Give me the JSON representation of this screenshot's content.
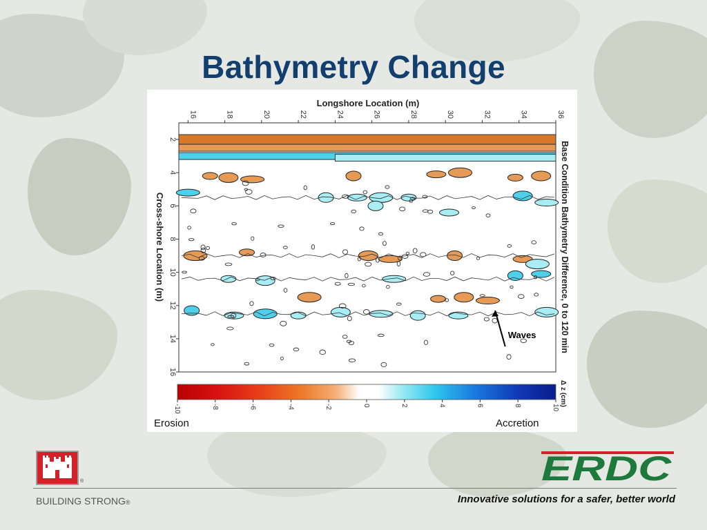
{
  "slide": {
    "title": "Bathymetry Change",
    "footer_left": "BUILDING STRONG",
    "footer_reg": "®",
    "tagline": "Innovative solutions for a safer, better world",
    "erdc_logo_text": "ERDC",
    "colors": {
      "title": "#123f6e",
      "erdc_green": "#1e7a3c",
      "logo_red": "#d62027"
    }
  },
  "chart_data": {
    "type": "heatmap",
    "title": "Longshore Location (m)",
    "xlabel": "Longshore Location (m)",
    "ylabel": "Cross-shore Location (m)",
    "right_label": "Base Condition Bathymetry Difference, 0 to 120 min",
    "x_ticks": [
      "16",
      "18",
      "20",
      "22",
      "24",
      "26",
      "28",
      "30",
      "32",
      "34",
      "36"
    ],
    "y_ticks": [
      "2",
      "4",
      "6",
      "8",
      "10",
      "12",
      "14",
      "16"
    ],
    "xlim": [
      15.5,
      36
    ],
    "ylim": [
      1,
      16
    ],
    "colorbar": {
      "label": "Δ z (cm)",
      "ticks": [
        "-10",
        "-8",
        "-6",
        "-4",
        "-2",
        "0",
        "2",
        "4",
        "6",
        "8",
        "10"
      ],
      "range": [
        -10,
        10
      ]
    },
    "bands": [
      {
        "y": 2.0,
        "dz": -5,
        "x": [
          15.5,
          36
        ]
      },
      {
        "y": 2.5,
        "dz": -3,
        "x": [
          15.5,
          36
        ]
      },
      {
        "y": 3.0,
        "dz": 3,
        "x": [
          15.5,
          36
        ]
      },
      {
        "y": 3.1,
        "dz": 1,
        "x": [
          24,
          36
        ]
      }
    ],
    "patches": [
      {
        "x": 17.2,
        "y": 4.2,
        "dz": -3
      },
      {
        "x": 18.2,
        "y": 4.3,
        "dz": -3
      },
      {
        "x": 19.5,
        "y": 4.4,
        "dz": -3
      },
      {
        "x": 25.0,
        "y": 4.2,
        "dz": -3
      },
      {
        "x": 29.5,
        "y": 4.1,
        "dz": -3
      },
      {
        "x": 30.8,
        "y": 4.0,
        "dz": -3
      },
      {
        "x": 33.8,
        "y": 4.3,
        "dz": -3
      },
      {
        "x": 35.2,
        "y": 4.2,
        "dz": -3
      },
      {
        "x": 16.0,
        "y": 5.2,
        "dz": 3
      },
      {
        "x": 23.5,
        "y": 5.5,
        "dz": 2
      },
      {
        "x": 25.2,
        "y": 5.5,
        "dz": 2
      },
      {
        "x": 26.5,
        "y": 5.5,
        "dz": 2
      },
      {
        "x": 28.0,
        "y": 5.5,
        "dz": 2
      },
      {
        "x": 34.2,
        "y": 5.4,
        "dz": 3
      },
      {
        "x": 35.5,
        "y": 5.8,
        "dz": 2
      },
      {
        "x": 26.2,
        "y": 6.0,
        "dz": 2
      },
      {
        "x": 30.2,
        "y": 6.4,
        "dz": 2
      },
      {
        "x": 16.4,
        "y": 9.0,
        "dz": -3
      },
      {
        "x": 19.2,
        "y": 8.8,
        "dz": -3
      },
      {
        "x": 25.8,
        "y": 9.0,
        "dz": -3
      },
      {
        "x": 27.0,
        "y": 9.2,
        "dz": -3
      },
      {
        "x": 30.5,
        "y": 9.0,
        "dz": -3
      },
      {
        "x": 34.2,
        "y": 9.2,
        "dz": -3
      },
      {
        "x": 35.0,
        "y": 9.5,
        "dz": 2
      },
      {
        "x": 18.2,
        "y": 10.4,
        "dz": 2
      },
      {
        "x": 20.2,
        "y": 10.5,
        "dz": 2
      },
      {
        "x": 27.2,
        "y": 10.4,
        "dz": 2
      },
      {
        "x": 33.8,
        "y": 10.2,
        "dz": 3
      },
      {
        "x": 35.2,
        "y": 10.1,
        "dz": 3
      },
      {
        "x": 22.6,
        "y": 11.5,
        "dz": -3
      },
      {
        "x": 29.6,
        "y": 11.6,
        "dz": -3
      },
      {
        "x": 31.0,
        "y": 11.5,
        "dz": -3
      },
      {
        "x": 32.3,
        "y": 11.7,
        "dz": -3
      },
      {
        "x": 16.2,
        "y": 12.3,
        "dz": 3
      },
      {
        "x": 18.5,
        "y": 12.6,
        "dz": 2
      },
      {
        "x": 20.2,
        "y": 12.5,
        "dz": 3
      },
      {
        "x": 22.0,
        "y": 12.6,
        "dz": 2
      },
      {
        "x": 24.3,
        "y": 12.4,
        "dz": 2
      },
      {
        "x": 26.5,
        "y": 12.5,
        "dz": 2
      },
      {
        "x": 28.5,
        "y": 12.6,
        "dz": 2
      },
      {
        "x": 30.7,
        "y": 12.6,
        "dz": 2
      },
      {
        "x": 35.5,
        "y": 12.4,
        "dz": 2
      }
    ],
    "annotations": [
      {
        "text": "Waves",
        "x": 33.4,
        "y": 13.8,
        "arrow_to": {
          "x": 32.7,
          "y": 12.3
        }
      }
    ],
    "side_labels": {
      "left": "Erosion",
      "right": "Accretion"
    }
  }
}
